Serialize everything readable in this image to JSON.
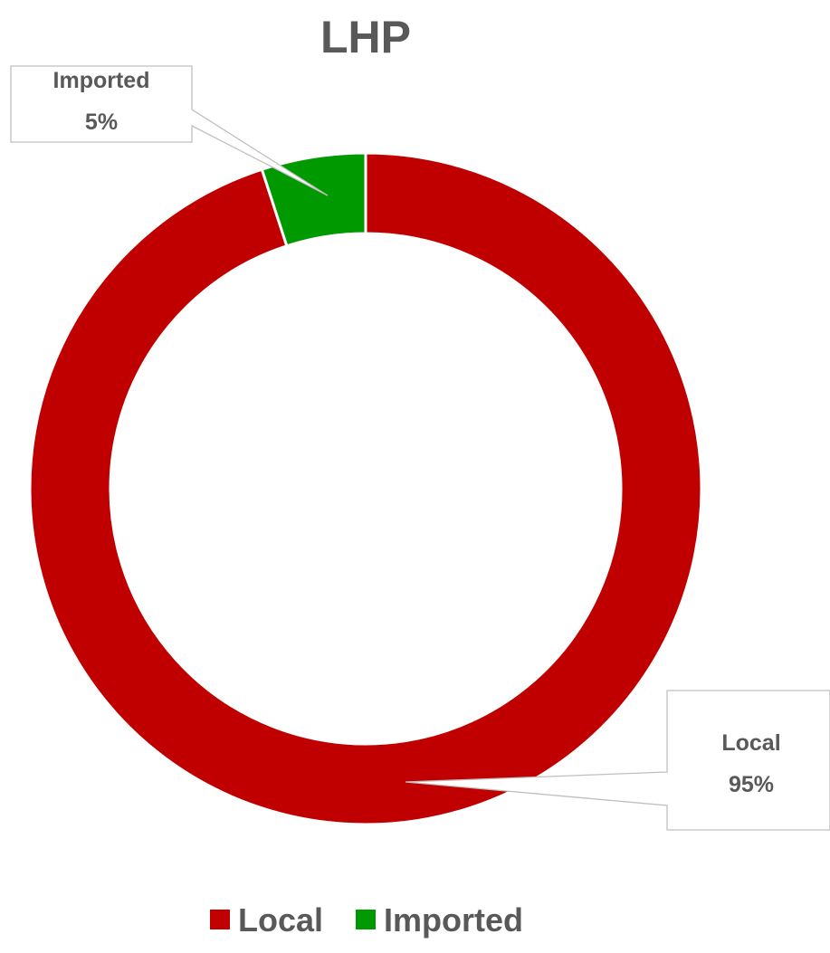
{
  "chart_data": {
    "type": "pie",
    "variant": "doughnut",
    "title": "LHP",
    "categories": [
      "Local",
      "Imported"
    ],
    "values": [
      95,
      5
    ],
    "value_labels": [
      "95%",
      "5%"
    ],
    "colors": [
      "#c00000",
      "#009900"
    ],
    "legend": {
      "position": "bottom",
      "entries": [
        "Local",
        "Imported"
      ]
    },
    "data_labels": [
      {
        "category": "Local",
        "value": "95%"
      },
      {
        "category": "Imported",
        "value": "5%"
      }
    ]
  }
}
